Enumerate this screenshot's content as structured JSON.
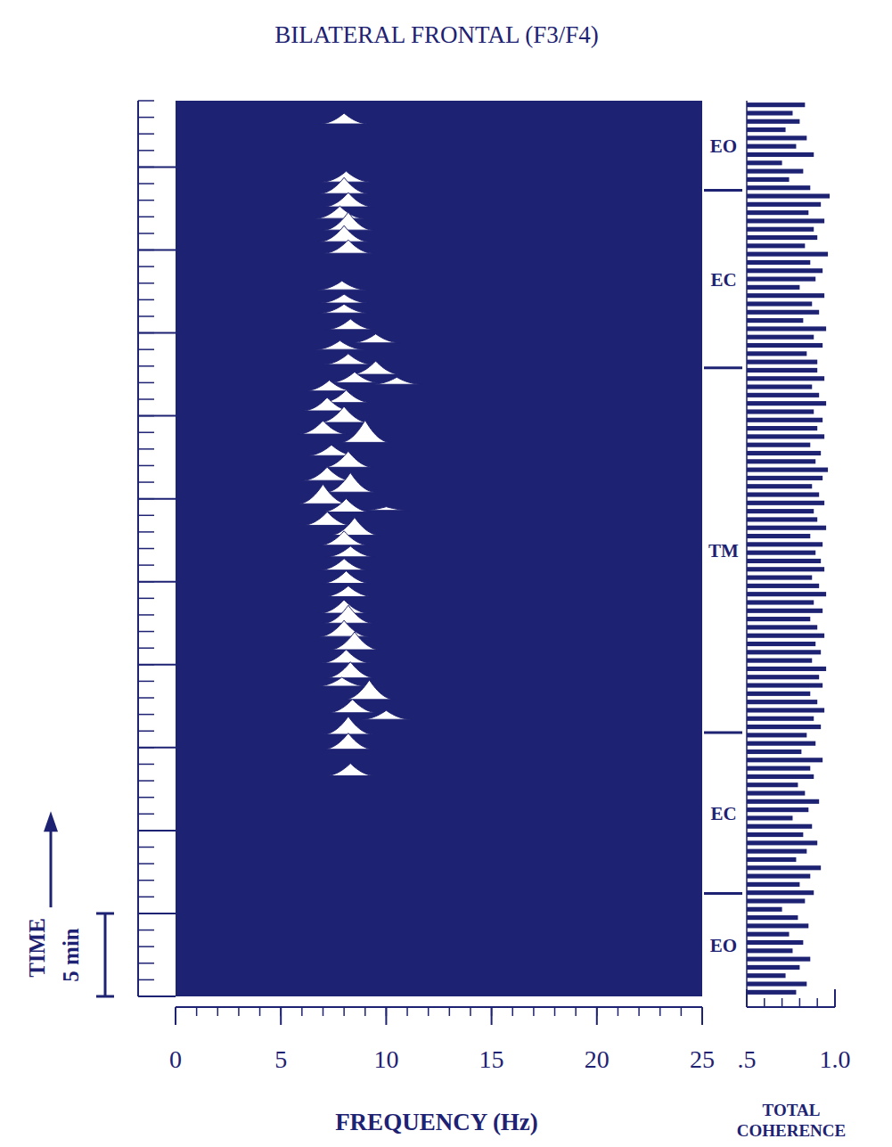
{
  "chart_data": [
    {
      "type": "spectral_array",
      "title": "BILATERAL FRONTAL (F3/F4)",
      "xlabel": "FREQUENCY (Hz)",
      "ylabel": "TIME",
      "color": "#1e2272",
      "xlim": [
        0,
        25
      ],
      "xticks": [
        0,
        5,
        10,
        15,
        20,
        25
      ],
      "ylim": [
        0,
        54
      ],
      "yticks": [
        0,
        5,
        10,
        15,
        20,
        25,
        30,
        35,
        40,
        45,
        50
      ],
      "tick_labels": "x",
      "annotations": [
        {
          "text": "5 min",
          "value": 5
        }
      ],
      "segments": [
        {
          "label": "EO",
          "start": 0,
          "end": 6.2
        },
        {
          "label": "EC",
          "start": 6.2,
          "end": 15.9
        },
        {
          "label": "TM",
          "start": 15.9,
          "end": 37.9
        },
        {
          "label": "EC",
          "start": 37.9,
          "end": 48.6
        },
        {
          "label": "EO",
          "start": 48.6,
          "end": 54
        }
      ],
      "peaks": {
        "time": [
          13.3,
          14.9,
          15.8,
          16.7,
          17.1,
          17.9,
          18.7,
          19.2,
          20.1,
          20.9,
          21.7,
          22.5,
          23.1,
          24.1,
          24.9,
          25.7,
          26.5,
          27.2,
          27.8,
          28.4,
          29.2,
          29.3,
          29.7,
          30.4,
          31.1,
          31.9,
          32.6,
          33.4,
          33.9,
          34.6,
          35.3,
          35.8,
          36.5,
          36.9,
          37.0,
          37.5,
          38.1,
          39.0,
          39.4,
          40.2,
          41.2,
          41.8,
          42.6,
          44.8,
          45.5,
          46.2,
          46.9,
          47.6,
          48.4,
          49.1,
          52.6
        ],
        "frequency": [
          8.3,
          8.2,
          8.2,
          10.0,
          8.4,
          9.2,
          7.9,
          8.3,
          8.1,
          8.5,
          8.0,
          8.2,
          8.0,
          8.2,
          8.1,
          8.0,
          8.3,
          8.0,
          8.5,
          7.2,
          8.1,
          10.0,
          7.0,
          8.3,
          7.2,
          8.2,
          7.4,
          9.0,
          7.0,
          8.0,
          7.2,
          8.1,
          7.3,
          10.5,
          8.5,
          9.5,
          8.2,
          7.8,
          9.5,
          8.3,
          8.0,
          8.0,
          7.9,
          8.2,
          8.0,
          8.2,
          7.8,
          8.2,
          8.0,
          8.1,
          8.0
        ],
        "amplitude": [
          0.75,
          0.97,
          1.08,
          0.54,
          0.81,
          1.18,
          0.54,
          0.97,
          0.81,
          1.08,
          0.97,
          1.08,
          0.81,
          0.65,
          0.75,
          0.7,
          0.65,
          0.86,
          1.08,
          0.81,
          0.81,
          0.22,
          1.18,
          1.18,
          0.81,
          0.97,
          0.65,
          1.34,
          0.81,
          0.97,
          0.81,
          0.75,
          0.65,
          0.43,
          0.65,
          0.81,
          0.65,
          0.54,
          0.54,
          0.65,
          0.54,
          0.54,
          0.54,
          0.81,
          0.97,
          1.08,
          0.75,
          0.86,
          0.97,
          0.65,
          0.65
        ]
      }
    },
    {
      "type": "bar",
      "orientation": "horizontal",
      "xlabel": "TOTAL COHERENCE",
      "color": "#1e2272",
      "xlim": [
        0.5,
        1.0
      ],
      "xticks": [
        {
          "value": 0.5,
          "label": ".5"
        },
        {
          "value": 1.0,
          "label": "1.0"
        }
      ],
      "ylim": [
        0,
        54
      ],
      "x": [
        0.25,
        0.75,
        1.25,
        1.75,
        2.25,
        2.75,
        3.25,
        3.75,
        4.25,
        4.75,
        5.25,
        5.75,
        6.25,
        6.75,
        7.25,
        7.75,
        8.25,
        8.75,
        9.25,
        9.75,
        10.25,
        10.75,
        11.25,
        11.75,
        12.25,
        12.75,
        13.25,
        13.75,
        14.25,
        14.75,
        15.25,
        15.75,
        16.25,
        16.75,
        17.25,
        17.75,
        18.25,
        18.75,
        19.25,
        19.75,
        20.25,
        20.75,
        21.25,
        21.75,
        22.25,
        22.75,
        23.25,
        23.75,
        24.25,
        24.75,
        25.25,
        25.75,
        26.25,
        26.75,
        27.25,
        27.75,
        28.25,
        28.75,
        29.25,
        29.75,
        30.25,
        30.75,
        31.25,
        31.75,
        32.25,
        32.75,
        33.25,
        33.75,
        34.25,
        34.75,
        35.25,
        35.75,
        36.25,
        36.75,
        37.25,
        37.75,
        38.25,
        38.75,
        39.25,
        39.75,
        40.25,
        40.75,
        41.25,
        41.75,
        42.25,
        42.75,
        43.25,
        43.75,
        44.25,
        44.75,
        45.25,
        45.75,
        46.25,
        46.75,
        47.25,
        47.75,
        48.25,
        48.75,
        49.25,
        49.75,
        50.25,
        50.75,
        51.25,
        51.75,
        52.25,
        52.75,
        53.25,
        53.75
      ],
      "values": [
        0.78,
        0.84,
        0.72,
        0.8,
        0.86,
        0.76,
        0.82,
        0.74,
        0.85,
        0.79,
        0.7,
        0.83,
        0.88,
        0.8,
        0.86,
        0.92,
        0.78,
        0.84,
        0.9,
        0.82,
        0.87,
        0.76,
        0.85,
        0.91,
        0.83,
        0.79,
        0.88,
        0.86,
        0.93,
        0.81,
        0.89,
        0.84,
        0.92,
        0.88,
        0.94,
        0.9,
        0.86,
        0.93,
        0.91,
        0.95,
        0.87,
        0.92,
        0.89,
        0.94,
        0.9,
        0.86,
        0.93,
        0.88,
        0.95,
        0.91,
        0.87,
        0.94,
        0.92,
        0.89,
        0.93,
        0.86,
        0.95,
        0.9,
        0.88,
        0.94,
        0.91,
        0.87,
        0.93,
        0.96,
        0.89,
        0.92,
        0.86,
        0.94,
        0.9,
        0.93,
        0.88,
        0.95,
        0.91,
        0.87,
        0.94,
        0.9,
        0.9,
        0.84,
        0.93,
        0.88,
        0.95,
        0.82,
        0.91,
        0.87,
        0.94,
        0.8,
        0.89,
        0.93,
        0.86,
        0.96,
        0.83,
        0.9,
        0.88,
        0.94,
        0.85,
        0.92,
        0.97,
        0.86,
        0.74,
        0.82,
        0.7,
        0.88,
        0.78,
        0.84,
        0.72,
        0.8,
        0.76,
        0.83
      ]
    }
  ]
}
